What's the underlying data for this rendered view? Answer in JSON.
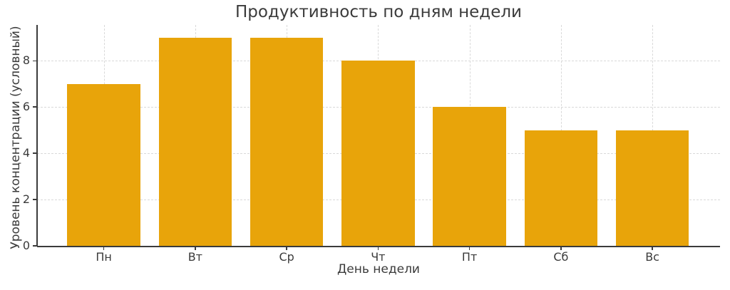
{
  "chart_data": {
    "type": "bar",
    "title": "Продуктивность по дням недели",
    "xlabel": "День недели",
    "ylabel": "Уровень концентрации (условный)",
    "categories": [
      "Пн",
      "Вт",
      "Ср",
      "Чт",
      "Пт",
      "Сб",
      "Вс"
    ],
    "values": [
      7,
      9,
      9,
      8,
      6,
      5,
      5
    ],
    "yticks": [
      0,
      2,
      4,
      6,
      8
    ],
    "ylim": [
      0,
      9.55
    ],
    "xlim": [
      -0.73,
      6.74
    ],
    "grid": "dashed, both axes, behind bars",
    "legend": "none",
    "colors": {
      "bar": "#E8A40A",
      "grid": "#d9d9d9",
      "text": "#3b3b3b",
      "spine": "#3b3b3b",
      "background": "#ffffff"
    }
  }
}
